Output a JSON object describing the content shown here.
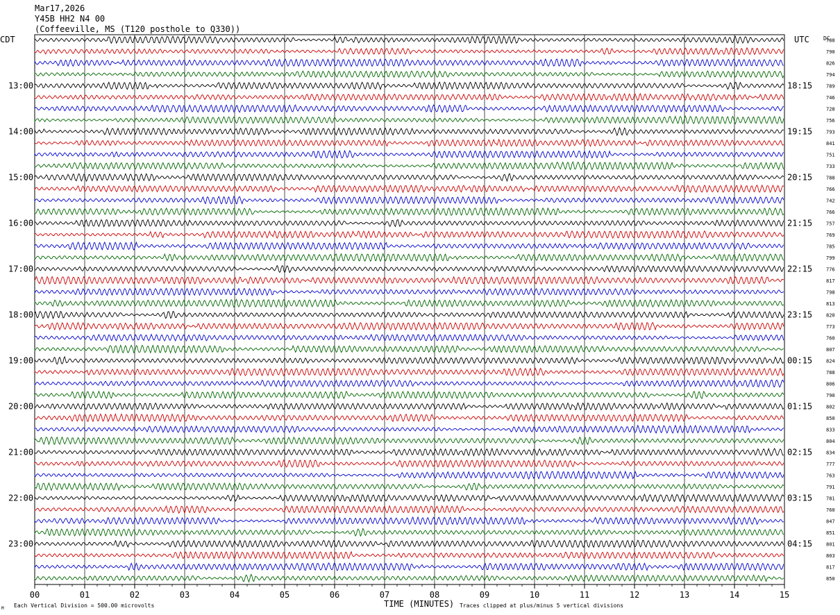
{
  "header": {
    "date": "Mar17,2026",
    "channel": "Y45B HH2 N4 00",
    "location": "(Coffeeville, MS (T120 posthole to Q330))"
  },
  "labels": {
    "left_tz": "CDT",
    "right_tz": "UTC",
    "dc": "DC",
    "x_axis": "TIME (MINUTES)",
    "scale_note": "Each Vertical Division =  500.00 microvolts",
    "clip_note": "Traces clipped at plus/minus 5 vertical divisions",
    "corner_mark": "M"
  },
  "chart_data": {
    "type": "line",
    "xlabel": "TIME (MINUTES)",
    "xlim": [
      0,
      15
    ],
    "x_ticks": [
      "00",
      "01",
      "02",
      "03",
      "04",
      "05",
      "06",
      "07",
      "08",
      "09",
      "10",
      "11",
      "12",
      "13",
      "14",
      "15"
    ],
    "trace_colors": [
      "#000000",
      "#cc0000",
      "#0000cc",
      "#006600"
    ],
    "rows_per_hour": 4,
    "hours": [
      {
        "cdt": "",
        "utc": "",
        "dc": [
          "788",
          "790",
          "826",
          "794"
        ]
      },
      {
        "cdt": "13:00",
        "utc": "18:15",
        "dc": [
          "789",
          "746",
          "728",
          "756"
        ]
      },
      {
        "cdt": "14:00",
        "utc": "19:15",
        "dc": [
          "793",
          "841",
          "751",
          "733"
        ]
      },
      {
        "cdt": "15:00",
        "utc": "20:15",
        "dc": [
          "788",
          "766",
          "742",
          "766"
        ]
      },
      {
        "cdt": "16:00",
        "utc": "21:15",
        "dc": [
          "757",
          "769",
          "785",
          "799"
        ]
      },
      {
        "cdt": "17:00",
        "utc": "22:15",
        "dc": [
          "776",
          "817",
          "798",
          "813"
        ]
      },
      {
        "cdt": "18:00",
        "utc": "23:15",
        "dc": [
          "820",
          "773",
          "760",
          "807"
        ]
      },
      {
        "cdt": "19:00",
        "utc": "00:15",
        "dc": [
          "824",
          "788",
          "806",
          "790"
        ]
      },
      {
        "cdt": "20:00",
        "utc": "01:15",
        "dc": [
          "802",
          "850",
          "833",
          "804"
        ]
      },
      {
        "cdt": "21:00",
        "utc": "02:15",
        "dc": [
          "834",
          "777",
          "763",
          "791"
        ]
      },
      {
        "cdt": "22:00",
        "utc": "03:15",
        "dc": [
          "781",
          "760",
          "847",
          "851"
        ]
      },
      {
        "cdt": "23:00",
        "utc": "04:15",
        "dc": [
          "801",
          "803",
          "817",
          "850"
        ]
      }
    ]
  }
}
